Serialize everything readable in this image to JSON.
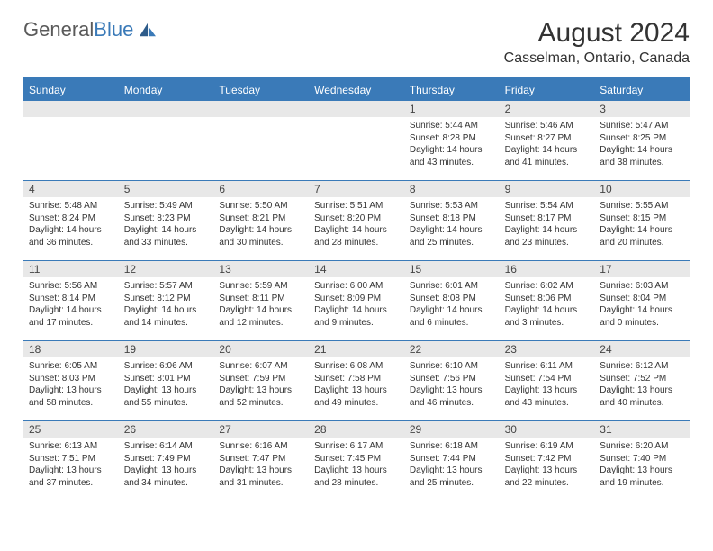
{
  "logo": {
    "text_gray": "General",
    "text_blue": "Blue"
  },
  "title": "August 2024",
  "location": "Casselman, Ontario, Canada",
  "colors": {
    "accent": "#3a7ab8",
    "header_text": "#ffffff",
    "daynum_bg": "#e8e8e8",
    "body_text": "#333333",
    "logo_gray": "#5a5a5a"
  },
  "weekdays": [
    "Sunday",
    "Monday",
    "Tuesday",
    "Wednesday",
    "Thursday",
    "Friday",
    "Saturday"
  ],
  "grid": {
    "rows": 5,
    "cols": 7,
    "first_day_col": 4,
    "days_in_month": 31
  },
  "days": {
    "1": {
      "sunrise": "5:44 AM",
      "sunset": "8:28 PM",
      "daylight": "14 hours and 43 minutes."
    },
    "2": {
      "sunrise": "5:46 AM",
      "sunset": "8:27 PM",
      "daylight": "14 hours and 41 minutes."
    },
    "3": {
      "sunrise": "5:47 AM",
      "sunset": "8:25 PM",
      "daylight": "14 hours and 38 minutes."
    },
    "4": {
      "sunrise": "5:48 AM",
      "sunset": "8:24 PM",
      "daylight": "14 hours and 36 minutes."
    },
    "5": {
      "sunrise": "5:49 AM",
      "sunset": "8:23 PM",
      "daylight": "14 hours and 33 minutes."
    },
    "6": {
      "sunrise": "5:50 AM",
      "sunset": "8:21 PM",
      "daylight": "14 hours and 30 minutes."
    },
    "7": {
      "sunrise": "5:51 AM",
      "sunset": "8:20 PM",
      "daylight": "14 hours and 28 minutes."
    },
    "8": {
      "sunrise": "5:53 AM",
      "sunset": "8:18 PM",
      "daylight": "14 hours and 25 minutes."
    },
    "9": {
      "sunrise": "5:54 AM",
      "sunset": "8:17 PM",
      "daylight": "14 hours and 23 minutes."
    },
    "10": {
      "sunrise": "5:55 AM",
      "sunset": "8:15 PM",
      "daylight": "14 hours and 20 minutes."
    },
    "11": {
      "sunrise": "5:56 AM",
      "sunset": "8:14 PM",
      "daylight": "14 hours and 17 minutes."
    },
    "12": {
      "sunrise": "5:57 AM",
      "sunset": "8:12 PM",
      "daylight": "14 hours and 14 minutes."
    },
    "13": {
      "sunrise": "5:59 AM",
      "sunset": "8:11 PM",
      "daylight": "14 hours and 12 minutes."
    },
    "14": {
      "sunrise": "6:00 AM",
      "sunset": "8:09 PM",
      "daylight": "14 hours and 9 minutes."
    },
    "15": {
      "sunrise": "6:01 AM",
      "sunset": "8:08 PM",
      "daylight": "14 hours and 6 minutes."
    },
    "16": {
      "sunrise": "6:02 AM",
      "sunset": "8:06 PM",
      "daylight": "14 hours and 3 minutes."
    },
    "17": {
      "sunrise": "6:03 AM",
      "sunset": "8:04 PM",
      "daylight": "14 hours and 0 minutes."
    },
    "18": {
      "sunrise": "6:05 AM",
      "sunset": "8:03 PM",
      "daylight": "13 hours and 58 minutes."
    },
    "19": {
      "sunrise": "6:06 AM",
      "sunset": "8:01 PM",
      "daylight": "13 hours and 55 minutes."
    },
    "20": {
      "sunrise": "6:07 AM",
      "sunset": "7:59 PM",
      "daylight": "13 hours and 52 minutes."
    },
    "21": {
      "sunrise": "6:08 AM",
      "sunset": "7:58 PM",
      "daylight": "13 hours and 49 minutes."
    },
    "22": {
      "sunrise": "6:10 AM",
      "sunset": "7:56 PM",
      "daylight": "13 hours and 46 minutes."
    },
    "23": {
      "sunrise": "6:11 AM",
      "sunset": "7:54 PM",
      "daylight": "13 hours and 43 minutes."
    },
    "24": {
      "sunrise": "6:12 AM",
      "sunset": "7:52 PM",
      "daylight": "13 hours and 40 minutes."
    },
    "25": {
      "sunrise": "6:13 AM",
      "sunset": "7:51 PM",
      "daylight": "13 hours and 37 minutes."
    },
    "26": {
      "sunrise": "6:14 AM",
      "sunset": "7:49 PM",
      "daylight": "13 hours and 34 minutes."
    },
    "27": {
      "sunrise": "6:16 AM",
      "sunset": "7:47 PM",
      "daylight": "13 hours and 31 minutes."
    },
    "28": {
      "sunrise": "6:17 AM",
      "sunset": "7:45 PM",
      "daylight": "13 hours and 28 minutes."
    },
    "29": {
      "sunrise": "6:18 AM",
      "sunset": "7:44 PM",
      "daylight": "13 hours and 25 minutes."
    },
    "30": {
      "sunrise": "6:19 AM",
      "sunset": "7:42 PM",
      "daylight": "13 hours and 22 minutes."
    },
    "31": {
      "sunrise": "6:20 AM",
      "sunset": "7:40 PM",
      "daylight": "13 hours and 19 minutes."
    }
  },
  "labels": {
    "sunrise": "Sunrise:",
    "sunset": "Sunset:",
    "daylight": "Daylight:"
  }
}
